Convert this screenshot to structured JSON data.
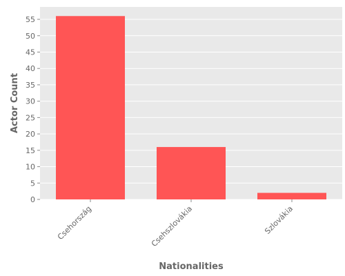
{
  "chart_data": {
    "type": "bar",
    "title": "",
    "xlabel": "Nationalities",
    "ylabel": "Actor Count",
    "categories": [
      "Csehország",
      "Csehszlovákia",
      "Szlovákia"
    ],
    "values": [
      56,
      16,
      2
    ],
    "ylim": [
      0,
      58.8
    ],
    "yticks": [
      0,
      5,
      10,
      15,
      20,
      25,
      30,
      35,
      40,
      45,
      50,
      55
    ],
    "grid": true,
    "legend": "none",
    "colors": {
      "bar": "#ff5555",
      "plot_background": "#e9e9e9",
      "grid": "#ffffff",
      "text": "#666666"
    }
  }
}
